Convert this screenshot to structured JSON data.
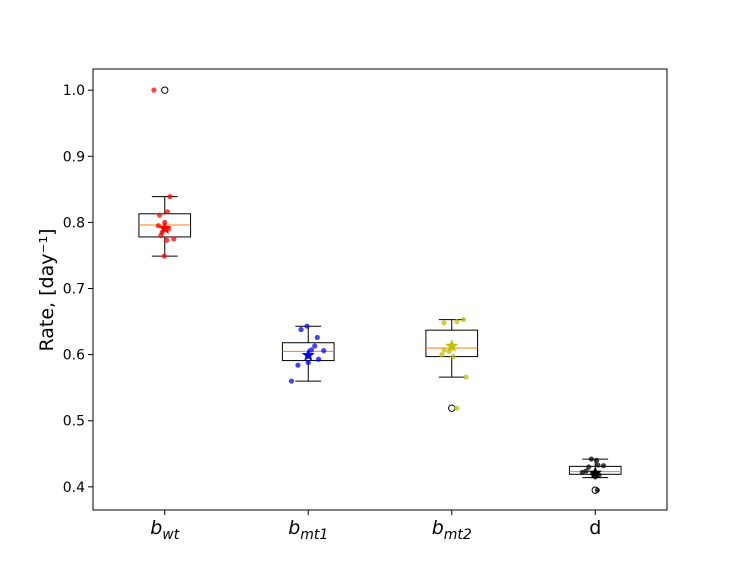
{
  "chart_data": {
    "type": "box",
    "title": "",
    "xlabel": "",
    "ylabel": "Rate, [day⁻¹]",
    "ylim": [
      0.365,
      1.032
    ],
    "yticks": [
      0.4,
      0.5,
      0.6,
      0.7,
      0.8,
      0.9,
      1.0
    ],
    "ytick_labels": [
      "0.4",
      "0.5",
      "0.6",
      "0.7",
      "0.8",
      "0.9",
      "1.0"
    ],
    "categories": [
      {
        "base": "b",
        "sub": "wt"
      },
      {
        "base": "b",
        "sub": "mt1"
      },
      {
        "base": "b",
        "sub": "mt2"
      },
      {
        "base": "d",
        "sub": ""
      }
    ],
    "series": [
      {
        "name": "b_wt",
        "color": "#ff0000",
        "box": {
          "q1": 0.778,
          "median": 0.796,
          "q3": 0.813,
          "whisker_low": 0.749,
          "whisker_high": 0.839
        },
        "outliers": [
          1.0
        ],
        "mean": 0.791,
        "points": [
          {
            "dx": -0.42,
            "y": 1.0
          },
          {
            "dx": 0.2,
            "y": 0.839
          },
          {
            "dx": 0.1,
            "y": 0.816
          },
          {
            "dx": -0.2,
            "y": 0.811
          },
          {
            "dx": 0.0,
            "y": 0.8
          },
          {
            "dx": -0.25,
            "y": 0.795
          },
          {
            "dx": 0.15,
            "y": 0.79
          },
          {
            "dx": -0.1,
            "y": 0.785
          },
          {
            "dx": -0.15,
            "y": 0.78
          },
          {
            "dx": 0.35,
            "y": 0.775
          },
          {
            "dx": 0.08,
            "y": 0.773
          },
          {
            "dx": -0.02,
            "y": 0.749
          }
        ]
      },
      {
        "name": "b_mt1",
        "color": "#0000ff",
        "box": {
          "q1": 0.591,
          "median": 0.605,
          "q3": 0.618,
          "whisker_low": 0.56,
          "whisker_high": 0.643
        },
        "outliers": [],
        "mean": 0.599,
        "points": [
          {
            "dx": -0.28,
            "y": 0.638
          },
          {
            "dx": -0.05,
            "y": 0.643
          },
          {
            "dx": 0.35,
            "y": 0.626
          },
          {
            "dx": 0.25,
            "y": 0.613
          },
          {
            "dx": 0.12,
            "y": 0.607
          },
          {
            "dx": 0.6,
            "y": 0.606
          },
          {
            "dx": 0.4,
            "y": 0.593
          },
          {
            "dx": 0.0,
            "y": 0.588
          },
          {
            "dx": -0.4,
            "y": 0.584
          },
          {
            "dx": -0.65,
            "y": 0.56
          }
        ]
      },
      {
        "name": "b_mt2",
        "color": "#bfbf00",
        "box": {
          "q1": 0.597,
          "median": 0.61,
          "q3": 0.637,
          "whisker_low": 0.566,
          "whisker_high": 0.653
        },
        "outliers": [
          0.519
        ],
        "mean": 0.613,
        "points": [
          {
            "dx": -0.3,
            "y": 0.648
          },
          {
            "dx": 0.2,
            "y": 0.65
          },
          {
            "dx": 0.45,
            "y": 0.653
          },
          {
            "dx": 0.0,
            "y": 0.61
          },
          {
            "dx": -0.3,
            "y": 0.607
          },
          {
            "dx": -0.1,
            "y": 0.605
          },
          {
            "dx": -0.38,
            "y": 0.6
          },
          {
            "dx": 0.05,
            "y": 0.597
          },
          {
            "dx": 0.55,
            "y": 0.566
          },
          {
            "dx": 0.2,
            "y": 0.519
          }
        ]
      },
      {
        "name": "d",
        "color": "#000000",
        "box": {
          "q1": 0.419,
          "median": 0.423,
          "q3": 0.431,
          "whisker_low": 0.414,
          "whisker_high": 0.442
        },
        "outliers": [
          0.395
        ],
        "mean": 0.421,
        "points": [
          {
            "dx": -0.15,
            "y": 0.442
          },
          {
            "dx": 0.05,
            "y": 0.44
          },
          {
            "dx": 0.1,
            "y": 0.433
          },
          {
            "dx": 0.32,
            "y": 0.432
          },
          {
            "dx": -0.25,
            "y": 0.43
          },
          {
            "dx": -0.35,
            "y": 0.424
          },
          {
            "dx": -0.5,
            "y": 0.422
          },
          {
            "dx": -0.1,
            "y": 0.42
          },
          {
            "dx": 0.15,
            "y": 0.418
          },
          {
            "dx": 0.0,
            "y": 0.415
          },
          {
            "dx": 0.08,
            "y": 0.395
          }
        ]
      }
    ]
  }
}
